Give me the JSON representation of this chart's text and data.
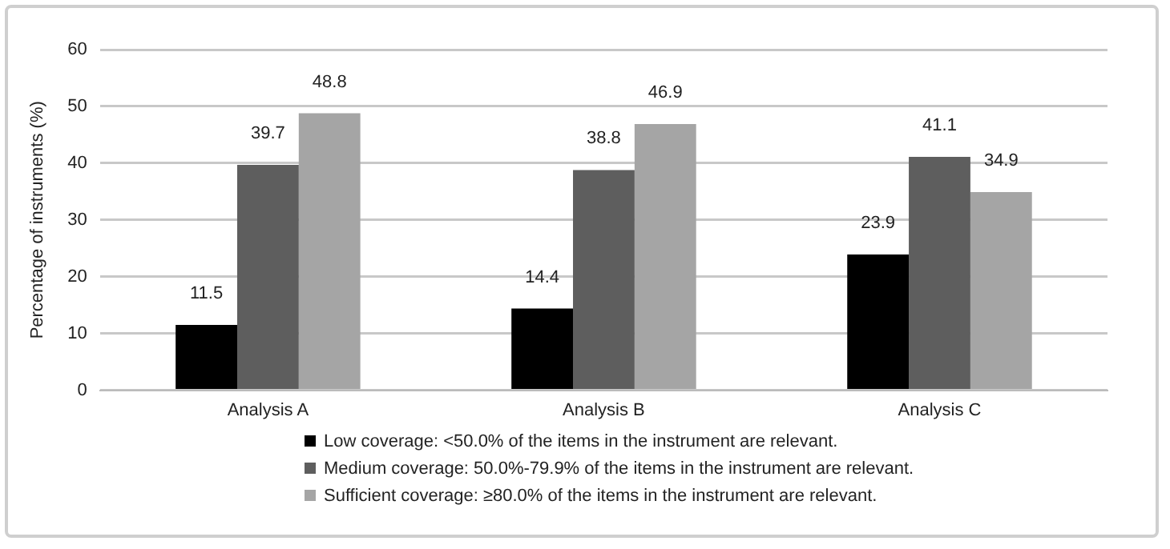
{
  "chart_data": {
    "type": "bar",
    "ylabel": "Percentage of instruments (%)",
    "categories": [
      "Analysis A",
      "Analysis B",
      "Analysis C"
    ],
    "series": [
      {
        "name": "Low coverage: <50.0% of the items in the instrument are relevant.",
        "color": "#000000",
        "values": [
          11.5,
          14.4,
          23.9
        ]
      },
      {
        "name": "Medium coverage: 50.0%-79.9% of the items in the instrument are relevant.",
        "color": "#5e5e5e",
        "values": [
          39.7,
          38.8,
          41.1
        ]
      },
      {
        "name": "Sufficient coverage: ≥80.0% of the items in the instrument are relevant.",
        "color": "#a5a5a5",
        "values": [
          48.8,
          46.9,
          34.9
        ]
      }
    ],
    "ylim": [
      0,
      60
    ],
    "yticks": [
      0,
      10,
      20,
      30,
      40,
      50,
      60
    ],
    "grid": "y",
    "legend": "bottom",
    "data_labels": true
  }
}
